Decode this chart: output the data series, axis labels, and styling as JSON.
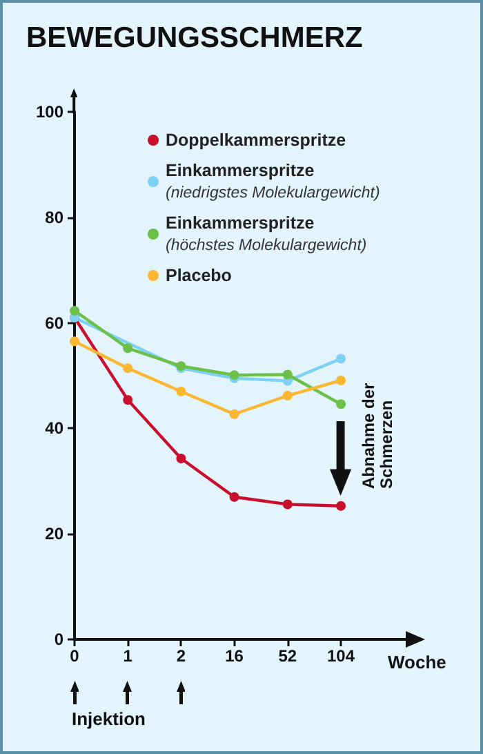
{
  "chart_data": {
    "type": "line",
    "title": "BEWEGUNGSSCHMERZ",
    "xlabel": "Woche",
    "categories": [
      "0",
      "1",
      "2",
      "16",
      "52",
      "104"
    ],
    "series": [
      {
        "name": "Doppelkammerspritze",
        "color": "#c8102e",
        "values": [
          61,
          45.4,
          34.3,
          27,
          25.6,
          25.3
        ]
      },
      {
        "name": "Einkammerspritze\n(niedrigstes Molekulargewicht)",
        "color": "#7fd0f5",
        "values": [
          61,
          null,
          51.4,
          49.5,
          49,
          53.2
        ]
      },
      {
        "name": "Einkammerspritze\n(höchstes Molekulargewicht)",
        "color": "#6cc04a",
        "values": [
          62.3,
          55.2,
          51.8,
          50.1,
          50.2,
          44.6
        ]
      },
      {
        "name": "Placebo",
        "color": "#fbb632",
        "values": [
          56.5,
          51.4,
          47,
          42.7,
          46.2,
          49.1
        ]
      }
    ],
    "ylim": [
      0,
      100
    ],
    "yticks": [
      0,
      20,
      40,
      60,
      80,
      100
    ],
    "annotations": [
      "Abnahme der Schmerzen",
      "Injektion"
    ],
    "grid": false,
    "legend": "top right",
    "marker": "circle",
    "line_style": "solid"
  }
}
